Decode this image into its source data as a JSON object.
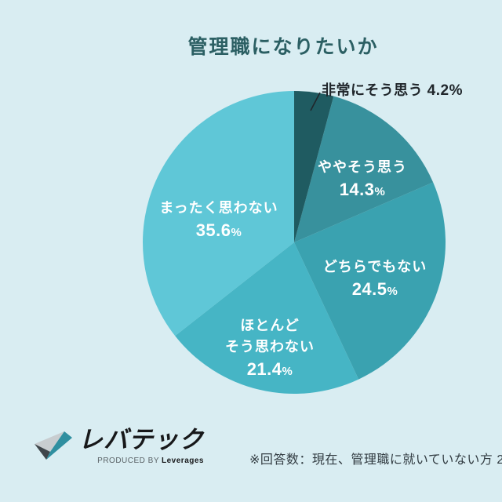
{
  "title": "管理職になりたいか",
  "colors": {
    "background": "#d9edf2",
    "title_text": "#2b5f63",
    "inside_label_text": "#ffffff",
    "outside_label_text": "#20262b",
    "footnote_text": "#323c42"
  },
  "chart_data": {
    "type": "pie",
    "title": "管理職になりたいか",
    "start_angle_deg": 0,
    "direction": "clockwise",
    "legend_position": "none",
    "percent_symbol": "%",
    "slices": [
      {
        "label": "非常にそう思う",
        "value": 4.2,
        "value_text": "4.2",
        "color": "#1f5b61",
        "label_position": "outside"
      },
      {
        "label": "ややそう思う",
        "value": 14.3,
        "value_text": "14.3",
        "color": "#38919d",
        "label_position": "inside"
      },
      {
        "label": "どちらでもない",
        "value": 24.5,
        "value_text": "24.5",
        "color": "#3aa2b0",
        "label_position": "inside"
      },
      {
        "label": "ほとんどそう思わない",
        "value": 21.4,
        "value_text": "21.4",
        "color": "#46b5c5",
        "label_position": "inside",
        "label_lines": [
          "ほとんど",
          "そう思わない"
        ]
      },
      {
        "label": "まったく思わない",
        "value": 35.6,
        "value_text": "35.6",
        "color": "#5fc7d7",
        "label_position": "inside"
      }
    ]
  },
  "footer": {
    "note": "※回答数：現在、管理職に就いていない方 2",
    "logo": {
      "brand": "レバテック",
      "produced_by": "PRODUCED BY",
      "company": "Leverages"
    }
  }
}
